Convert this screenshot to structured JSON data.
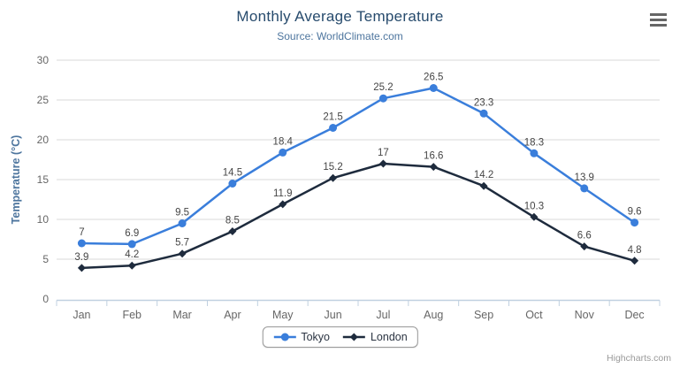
{
  "chart_data": {
    "type": "line",
    "title": "Monthly Average Temperature",
    "subtitle": "Source: WorldClimate.com",
    "xlabel": "",
    "ylabel": "Temperature (°C)",
    "categories": [
      "Jan",
      "Feb",
      "Mar",
      "Apr",
      "May",
      "Jun",
      "Jul",
      "Aug",
      "Sep",
      "Oct",
      "Nov",
      "Dec"
    ],
    "series": [
      {
        "name": "Tokyo",
        "color": "#3a7edb",
        "marker": "circle",
        "values": [
          7,
          6.9,
          9.5,
          14.5,
          18.4,
          21.5,
          25.2,
          26.5,
          23.3,
          18.3,
          13.9,
          9.6
        ]
      },
      {
        "name": "London",
        "color": "#1e2b3d",
        "marker": "diamond",
        "values": [
          3.9,
          4.2,
          5.7,
          8.5,
          11.9,
          15.2,
          17,
          16.6,
          14.2,
          10.3,
          6.6,
          4.8
        ]
      }
    ],
    "ylim": [
      0,
      30
    ],
    "ytick_step": 5,
    "grid": "horizontal-only",
    "legend_position": "bottom-center",
    "data_labels": true
  },
  "credits": {
    "label": "Highcharts.com"
  },
  "colors": {
    "title": "#274b6d",
    "subtitle": "#4d759e",
    "axis_title": "#4d759e",
    "tick_label": "#666666",
    "data_label": "#454545",
    "gridline": "#d8d8d8",
    "axis_line": "#c0d0e0",
    "menu_icon": "#666666",
    "credits": "#999999",
    "background": "#ffffff"
  }
}
